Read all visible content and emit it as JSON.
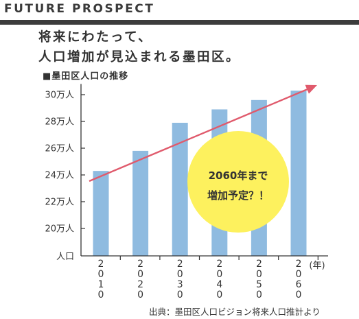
{
  "header": {
    "brand": "FUTURE PROSPECT",
    "headline_line1": "将来にわたって、",
    "headline_line2": "人口増加が見込まれる墨田区。"
  },
  "chart_data": {
    "type": "bar",
    "title": "■墨田区人口の推移",
    "ylabel": "人口",
    "xlabel": "(年)",
    "categories": [
      "2010",
      "2020",
      "2030",
      "2040",
      "2050",
      "2060"
    ],
    "values": [
      24.3,
      25.8,
      27.9,
      28.9,
      29.6,
      30.3
    ],
    "unit": "万人",
    "ylim": [
      19,
      30.5
    ],
    "yticks": [
      20,
      22,
      24,
      26,
      28,
      30
    ],
    "ytick_labels": [
      "20万人",
      "22万人",
      "24万人",
      "26万人",
      "28万人",
      "30万人"
    ],
    "bar_color": "#8fbbe0",
    "arrow_color": "#e05a6c",
    "callout": {
      "line1": "2060年まで",
      "line2": "増加予定？！",
      "color": "#fdf15e"
    },
    "source": "出典：墨田区人口ビジョン将来人口推計より"
  }
}
